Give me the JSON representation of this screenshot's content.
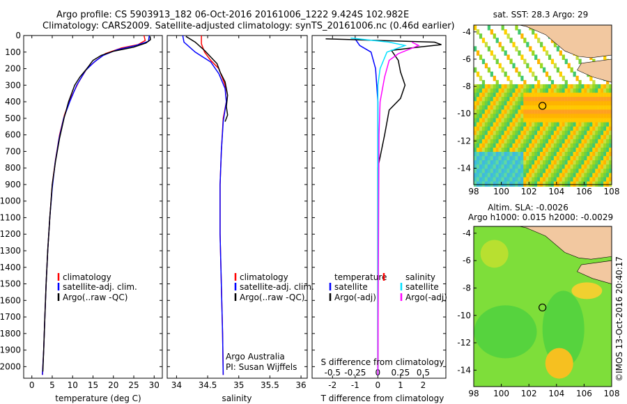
{
  "header": {
    "line1": "Argo profile: CS 5903913_182 06-Oct-2016 20161006_1222 9.424S 102.982E",
    "line2": "Climatology: CARS2009. Satellite-adjusted climatology: synTS_20161006.nc (0.46d earlier)"
  },
  "watermark": "©IMOS 13-Oct-2016 20:40:17",
  "colors": {
    "red": "#ff0000",
    "blue": "#0000ff",
    "black": "#000000",
    "cyan": "#00e0ff",
    "magenta": "#ff00ff",
    "land": "#f2c8a0"
  },
  "chart_data": [
    {
      "type": "line",
      "panel": "temperature",
      "xlabel": "temperature (deg C)",
      "xticks": [
        0,
        5,
        10,
        15,
        20,
        25,
        30
      ],
      "xlim": [
        -2,
        32
      ],
      "ylim": [
        2070,
        0
      ],
      "yticks": [
        0,
        100,
        200,
        300,
        400,
        500,
        600,
        700,
        800,
        900,
        1000,
        1100,
        1200,
        1300,
        1400,
        1500,
        1600,
        1700,
        1800,
        1900,
        2000
      ],
      "legend": [
        "climatology",
        "satellite-adj. clim.",
        "Argo(..raw -QC)"
      ],
      "series": [
        {
          "name": "climatology",
          "color": "red",
          "points": [
            [
              27.5,
              0
            ],
            [
              27.8,
              30
            ],
            [
              26,
              55
            ],
            [
              22,
              75
            ],
            [
              18,
              110
            ],
            [
              15.8,
              150
            ],
            [
              13.5,
              200
            ],
            [
              11.5,
              280
            ],
            [
              9.5,
              380
            ],
            [
              8,
              480
            ],
            [
              6.8,
              600
            ],
            [
              5.8,
              750
            ],
            [
              5,
              900
            ],
            [
              4.4,
              1100
            ],
            [
              3.9,
              1300
            ],
            [
              3.5,
              1500
            ],
            [
              3.2,
              1700
            ],
            [
              2.9,
              1900
            ],
            [
              2.6,
              2050
            ]
          ]
        },
        {
          "name": "satellite-adj. clim.",
          "color": "blue",
          "points": [
            [
              28.8,
              0
            ],
            [
              28.6,
              35
            ],
            [
              25.5,
              60
            ],
            [
              21,
              85
            ],
            [
              17.5,
              120
            ],
            [
              15.3,
              160
            ],
            [
              13.2,
              210
            ],
            [
              11,
              300
            ],
            [
              9.3,
              400
            ],
            [
              7.8,
              500
            ],
            [
              6.7,
              620
            ],
            [
              5.7,
              770
            ],
            [
              5,
              920
            ],
            [
              4.4,
              1100
            ],
            [
              3.9,
              1300
            ],
            [
              3.5,
              1500
            ],
            [
              3.2,
              1700
            ],
            [
              2.9,
              1900
            ],
            [
              2.6,
              2050
            ]
          ]
        },
        {
          "name": "Argo(..raw -QC)",
          "color": "black",
          "points": [
            [
              29,
              5
            ],
            [
              29.1,
              25
            ],
            [
              28,
              45
            ],
            [
              25,
              70
            ],
            [
              20,
              95
            ],
            [
              17,
              120
            ],
            [
              15,
              150
            ],
            [
              13.5,
              200
            ],
            [
              11.8,
              250
            ],
            [
              10.5,
              300
            ],
            [
              9,
              400
            ],
            [
              7.9,
              500
            ],
            [
              6.8,
              620
            ],
            [
              5.8,
              760
            ],
            [
              5,
              900
            ],
            [
              4.4,
              1100
            ],
            [
              3.9,
              1300
            ],
            [
              3.5,
              1500
            ],
            [
              3.2,
              1700
            ],
            [
              2.9,
              1900
            ],
            [
              2.7,
              2030
            ]
          ]
        }
      ]
    },
    {
      "type": "line",
      "panel": "salinity",
      "xlabel": "salinity",
      "xticks": [
        34,
        34.5,
        35,
        35.5,
        36
      ],
      "xlim": [
        33.85,
        36.1
      ],
      "ylim": [
        2070,
        0
      ],
      "legend": [
        "climatology",
        "satellite-adj. clim.",
        "Argo(..raw -QC)"
      ],
      "series": [
        {
          "name": "climatology",
          "color": "red",
          "points": [
            [
              34.4,
              0
            ],
            [
              34.4,
              50
            ],
            [
              34.45,
              100
            ],
            [
              34.55,
              150
            ],
            [
              34.68,
              200
            ],
            [
              34.78,
              300
            ],
            [
              34.8,
              400
            ],
            [
              34.75,
              500
            ],
            [
              34.72,
              700
            ],
            [
              34.7,
              900
            ],
            [
              34.7,
              1200
            ],
            [
              34.72,
              1500
            ],
            [
              34.74,
              1800
            ],
            [
              34.75,
              2050
            ]
          ]
        },
        {
          "name": "satellite-adj. clim.",
          "color": "blue",
          "points": [
            [
              34.1,
              0
            ],
            [
              34.12,
              40
            ],
            [
              34.3,
              100
            ],
            [
              34.55,
              160
            ],
            [
              34.68,
              230
            ],
            [
              34.78,
              320
            ],
            [
              34.8,
              400
            ],
            [
              34.75,
              520
            ],
            [
              34.72,
              700
            ],
            [
              34.7,
              900
            ],
            [
              34.7,
              1200
            ],
            [
              34.72,
              1500
            ],
            [
              34.74,
              1800
            ],
            [
              34.75,
              2050
            ]
          ]
        },
        {
          "name": "Argo(..raw -QC)",
          "color": "black",
          "points": [
            [
              34.15,
              5
            ],
            [
              34.3,
              40
            ],
            [
              34.45,
              90
            ],
            [
              34.55,
              130
            ],
            [
              34.65,
              170
            ],
            [
              34.7,
              220
            ],
            [
              34.78,
              280
            ],
            [
              34.82,
              360
            ],
            [
              34.8,
              430
            ],
            [
              34.82,
              480
            ],
            [
              34.78,
              520
            ]
          ]
        }
      ],
      "annotations": [
        "Argo Australia",
        "PI: Susan Wijffels"
      ]
    },
    {
      "type": "line",
      "panel": "difference",
      "xlabel_top": "S difference from climatology",
      "xticks_top": [
        "-0.5",
        "-0.25",
        "0",
        "0.25",
        "0.5"
      ],
      "xlabel": "T difference from climatology",
      "xticks": [
        -2,
        -1,
        0,
        1,
        2
      ],
      "xlim": [
        -2.9,
        3
      ],
      "ylim": [
        2070,
        0
      ],
      "legend_left": {
        "heading": "temperature",
        "items": [
          "satellite",
          "Argo(-adj)"
        ]
      },
      "legend_right": {
        "heading": "salinity",
        "items": [
          "satellite",
          "Argo(-adj)"
        ]
      },
      "series": [
        {
          "name": "temperature satellite",
          "color": "blue",
          "points": [
            [
              -1,
              20
            ],
            [
              -0.8,
              60
            ],
            [
              -0.3,
              100
            ],
            [
              -0.1,
              200
            ],
            [
              0,
              400
            ],
            [
              0,
              2050
            ]
          ]
        },
        {
          "name": "temperature Argo(-adj)",
          "color": "black",
          "points": [
            [
              -2.3,
              20
            ],
            [
              2.5,
              40
            ],
            [
              2.8,
              55
            ],
            [
              1.8,
              70
            ],
            [
              0.6,
              90
            ],
            [
              0.9,
              150
            ],
            [
              1.0,
              220
            ],
            [
              1.2,
              300
            ],
            [
              1,
              380
            ],
            [
              0.5,
              450
            ],
            [
              0.3,
              600
            ],
            [
              0,
              800
            ],
            [
              0,
              1200
            ],
            [
              0,
              2000
            ]
          ]
        },
        {
          "name": "salinity satellite",
          "color": "cyan",
          "points": [
            [
              -1.2,
              15
            ],
            [
              0.5,
              40
            ],
            [
              1.2,
              60
            ],
            [
              0.4,
              100
            ],
            [
              0.1,
              200
            ],
            [
              0,
              300
            ],
            [
              0,
              2050
            ]
          ]
        },
        {
          "name": "salinity Argo(-adj)",
          "color": "magenta",
          "points": [
            [
              1.5,
              40
            ],
            [
              1.8,
              60
            ],
            [
              0.9,
              110
            ],
            [
              0.5,
              150
            ],
            [
              0.3,
              250
            ],
            [
              0.1,
              400
            ],
            [
              0.05,
              600
            ],
            [
              0,
              2050
            ]
          ]
        }
      ]
    },
    {
      "type": "heatmap",
      "panel": "sst-map",
      "title": "sat. SST: 28.3 Argo: 29",
      "xticks": [
        98,
        100,
        102,
        104,
        106,
        108
      ],
      "yticks": [
        -4,
        -6,
        -8,
        -10,
        -12,
        -14
      ],
      "xlim": [
        98,
        108
      ],
      "ylim": [
        -15.2,
        -3.5
      ],
      "marker": [
        102.982,
        -9.424
      ]
    },
    {
      "type": "heatmap",
      "panel": "sla-map",
      "title": "Altim. SLA: -0.0026",
      "subtitle": "Argo h1000: 0.015 h2000: -0.0029",
      "xticks": [
        98,
        100,
        102,
        104,
        106,
        108
      ],
      "yticks": [
        -4,
        -6,
        -8,
        -10,
        -12,
        -14
      ],
      "xlim": [
        98,
        108
      ],
      "ylim": [
        -15.2,
        -3.5
      ],
      "marker": [
        102.982,
        -9.424
      ]
    }
  ]
}
